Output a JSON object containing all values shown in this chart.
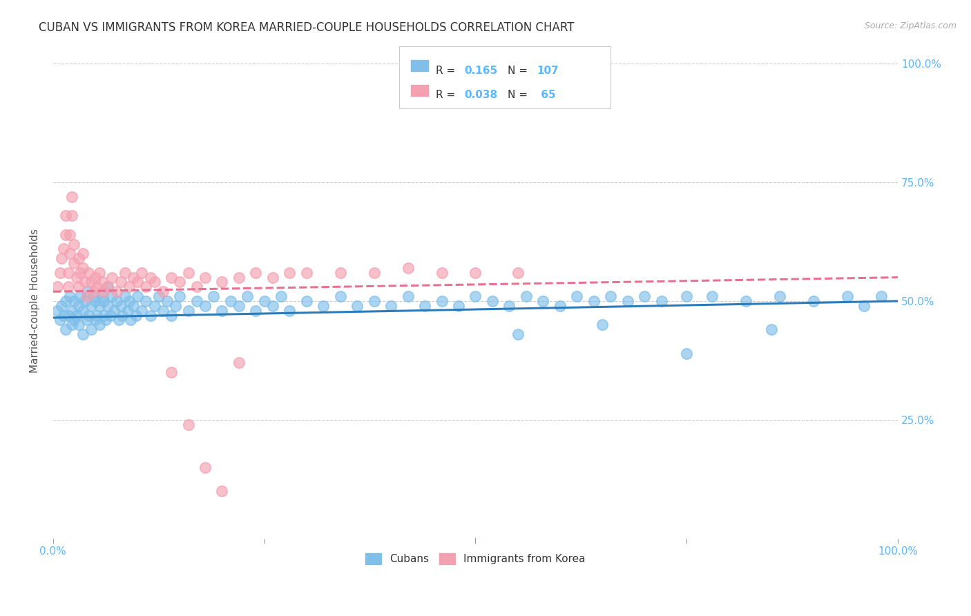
{
  "title": "CUBAN VS IMMIGRANTS FROM KOREA MARRIED-COUPLE HOUSEHOLDS CORRELATION CHART",
  "source": "Source: ZipAtlas.com",
  "ylabel": "Married-couple Households",
  "R_cubans": 0.165,
  "N_cubans": 107,
  "R_korea": 0.038,
  "N_korea": 65,
  "cubans_color": "#7fbfea",
  "korea_color": "#f4a0b0",
  "trendline_cubans_color": "#2b7bba",
  "trendline_korea_color": "#e87090",
  "legend_cubans": "Cubans",
  "legend_korea": "Immigrants from Korea",
  "background_color": "#ffffff",
  "grid_color": "#cccccc",
  "title_color": "#333333",
  "source_color": "#aaaaaa",
  "tick_color": "#5bb8ff",
  "label_color": "#555555",
  "title_fontsize": 12,
  "cubans_x": [
    0.005,
    0.008,
    0.01,
    0.012,
    0.015,
    0.015,
    0.018,
    0.02,
    0.022,
    0.022,
    0.025,
    0.025,
    0.028,
    0.03,
    0.03,
    0.032,
    0.035,
    0.035,
    0.038,
    0.04,
    0.04,
    0.042,
    0.045,
    0.045,
    0.048,
    0.05,
    0.05,
    0.052,
    0.055,
    0.055,
    0.058,
    0.06,
    0.06,
    0.062,
    0.065,
    0.065,
    0.068,
    0.07,
    0.072,
    0.075,
    0.078,
    0.08,
    0.082,
    0.085,
    0.088,
    0.09,
    0.092,
    0.095,
    0.098,
    0.1,
    0.105,
    0.11,
    0.115,
    0.12,
    0.125,
    0.13,
    0.135,
    0.14,
    0.145,
    0.15,
    0.16,
    0.17,
    0.18,
    0.19,
    0.2,
    0.21,
    0.22,
    0.23,
    0.24,
    0.25,
    0.26,
    0.27,
    0.28,
    0.3,
    0.32,
    0.34,
    0.36,
    0.38,
    0.4,
    0.42,
    0.44,
    0.46,
    0.48,
    0.5,
    0.52,
    0.54,
    0.56,
    0.58,
    0.6,
    0.62,
    0.64,
    0.66,
    0.68,
    0.7,
    0.72,
    0.75,
    0.78,
    0.82,
    0.86,
    0.9,
    0.94,
    0.96,
    0.98,
    0.85,
    0.75,
    0.65,
    0.55
  ],
  "cubans_y": [
    0.48,
    0.46,
    0.49,
    0.47,
    0.44,
    0.5,
    0.47,
    0.51,
    0.45,
    0.48,
    0.46,
    0.5,
    0.47,
    0.49,
    0.45,
    0.51,
    0.43,
    0.48,
    0.5,
    0.46,
    0.52,
    0.47,
    0.49,
    0.44,
    0.51,
    0.46,
    0.5,
    0.47,
    0.49,
    0.45,
    0.51,
    0.47,
    0.5,
    0.46,
    0.49,
    0.53,
    0.47,
    0.51,
    0.48,
    0.5,
    0.46,
    0.49,
    0.47,
    0.51,
    0.48,
    0.5,
    0.46,
    0.49,
    0.47,
    0.51,
    0.48,
    0.5,
    0.47,
    0.49,
    0.51,
    0.48,
    0.5,
    0.47,
    0.49,
    0.51,
    0.48,
    0.5,
    0.49,
    0.51,
    0.48,
    0.5,
    0.49,
    0.51,
    0.48,
    0.5,
    0.49,
    0.51,
    0.48,
    0.5,
    0.49,
    0.51,
    0.49,
    0.5,
    0.49,
    0.51,
    0.49,
    0.5,
    0.49,
    0.51,
    0.5,
    0.49,
    0.51,
    0.5,
    0.49,
    0.51,
    0.5,
    0.51,
    0.5,
    0.51,
    0.5,
    0.51,
    0.51,
    0.5,
    0.51,
    0.5,
    0.51,
    0.49,
    0.51,
    0.44,
    0.39,
    0.45,
    0.43
  ],
  "korea_x": [
    0.005,
    0.008,
    0.01,
    0.012,
    0.015,
    0.015,
    0.018,
    0.018,
    0.02,
    0.02,
    0.022,
    0.022,
    0.025,
    0.025,
    0.028,
    0.03,
    0.03,
    0.032,
    0.035,
    0.035,
    0.038,
    0.04,
    0.042,
    0.045,
    0.048,
    0.05,
    0.052,
    0.055,
    0.058,
    0.06,
    0.065,
    0.07,
    0.075,
    0.08,
    0.085,
    0.09,
    0.095,
    0.1,
    0.105,
    0.11,
    0.115,
    0.12,
    0.13,
    0.14,
    0.15,
    0.16,
    0.17,
    0.18,
    0.2,
    0.22,
    0.24,
    0.26,
    0.28,
    0.3,
    0.34,
    0.38,
    0.42,
    0.46,
    0.5,
    0.55,
    0.14,
    0.16,
    0.18,
    0.2,
    0.22
  ],
  "korea_y": [
    0.53,
    0.56,
    0.59,
    0.61,
    0.64,
    0.68,
    0.53,
    0.56,
    0.6,
    0.64,
    0.68,
    0.72,
    0.58,
    0.62,
    0.55,
    0.59,
    0.53,
    0.56,
    0.6,
    0.57,
    0.54,
    0.51,
    0.56,
    0.54,
    0.52,
    0.55,
    0.53,
    0.56,
    0.54,
    0.52,
    0.53,
    0.55,
    0.52,
    0.54,
    0.56,
    0.53,
    0.55,
    0.54,
    0.56,
    0.53,
    0.55,
    0.54,
    0.52,
    0.55,
    0.54,
    0.56,
    0.53,
    0.55,
    0.54,
    0.55,
    0.56,
    0.55,
    0.56,
    0.56,
    0.56,
    0.56,
    0.57,
    0.56,
    0.56,
    0.56,
    0.35,
    0.24,
    0.15,
    0.1,
    0.37
  ],
  "trendline_x_start": 0.0,
  "trendline_x_end": 1.0,
  "cubans_trend_y_start": 0.465,
  "cubans_trend_y_end": 0.5,
  "korea_trend_y_start": 0.52,
  "korea_trend_y_end": 0.55,
  "xlim": [
    0.0,
    1.0
  ],
  "ylim": [
    0.0,
    1.0
  ],
  "xtick_positions": [
    0.0,
    0.25,
    0.5,
    0.75,
    1.0
  ],
  "xtick_labels": [
    "0.0%",
    "",
    "",
    "",
    "100.0%"
  ],
  "ytick_positions": [
    0.0,
    0.25,
    0.5,
    0.75,
    1.0
  ],
  "ytick_labels_right": [
    "",
    "25.0%",
    "50.0%",
    "75.0%",
    "100.0%"
  ]
}
